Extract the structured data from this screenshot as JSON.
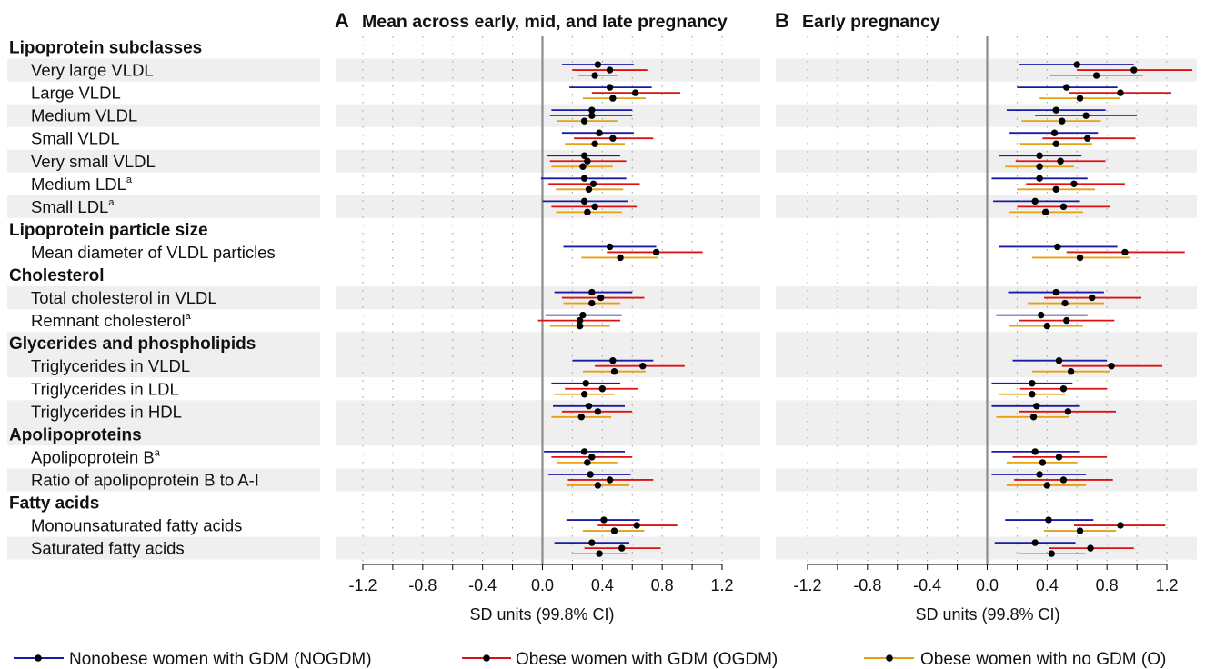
{
  "panels": [
    {
      "letter": "A",
      "title": "Mean across early, mid, and late pregnancy",
      "xlabel": "SD units (99.8% CI)"
    },
    {
      "letter": "B",
      "title": "Early pregnancy",
      "xlabel": "SD units (99.8% CI)"
    }
  ],
  "ticks": [
    "-1.2",
    "-0.8",
    "-0.4",
    "0.0",
    "0.4",
    "0.8",
    "1.2"
  ],
  "legend": [
    {
      "label": "Nonobese women with GDM (NOGDM)",
      "color": "#1a1aa8"
    },
    {
      "label": "Obese women with GDM (OGDM)",
      "color": "#dd1111"
    },
    {
      "label": "Obese women with no GDM (O)",
      "color": "#e8a010"
    }
  ],
  "rows": [
    {
      "label": "Lipoprotein subclasses",
      "group": true
    },
    {
      "label": "Very large VLDL"
    },
    {
      "label": "Large VLDL"
    },
    {
      "label": "Medium VLDL"
    },
    {
      "label": "Small VLDL"
    },
    {
      "label": "Very small VLDL"
    },
    {
      "label": "Medium LDL",
      "sup": "a"
    },
    {
      "label": "Small LDL",
      "sup": "a"
    },
    {
      "label": "Lipoprotein particle size",
      "group": true
    },
    {
      "label": "Mean diameter of VLDL particles"
    },
    {
      "label": "Cholesterol",
      "group": true
    },
    {
      "label": "Total cholesterol in VLDL"
    },
    {
      "label": "Remnant cholesterol",
      "sup": "a"
    },
    {
      "label": "Glycerides and phospholipids",
      "group": true
    },
    {
      "label": "Triglycerides in VLDL"
    },
    {
      "label": "Triglycerides in LDL"
    },
    {
      "label": "Triglycerides in HDL"
    },
    {
      "label": "Apolipoproteins",
      "group": true
    },
    {
      "label": "Apolipoprotein B",
      "sup": "a"
    },
    {
      "label": "Ratio of apolipoprotein B to A-I"
    },
    {
      "label": "Fatty acids",
      "group": true
    },
    {
      "label": "Monounsaturated fatty acids"
    },
    {
      "label": "Saturated fatty acids"
    }
  ],
  "chart_data": {
    "type": "forest",
    "xlim": [
      -1.2,
      1.2
    ],
    "series_names": [
      "Nonobese women with GDM (NOGDM)",
      "Obese women with GDM (OGDM)",
      "Obese women with no GDM (O)"
    ],
    "panels": [
      {
        "name": "Mean across early, mid, and late pregnancy",
        "values": {
          "Very large VLDL": [
            [
              0.37,
              0.13,
              0.61
            ],
            [
              0.45,
              0.2,
              0.7
            ],
            [
              0.35,
              0.24,
              0.5
            ]
          ],
          "Large VLDL": [
            [
              0.45,
              0.18,
              0.73
            ],
            [
              0.62,
              0.33,
              0.92
            ],
            [
              0.47,
              0.27,
              0.69
            ]
          ],
          "Medium VLDL": [
            [
              0.33,
              0.06,
              0.6
            ],
            [
              0.33,
              0.05,
              0.6
            ],
            [
              0.28,
              0.1,
              0.5
            ]
          ],
          "Small VLDL": [
            [
              0.38,
              0.13,
              0.61
            ],
            [
              0.47,
              0.21,
              0.74
            ],
            [
              0.35,
              0.15,
              0.55
            ]
          ],
          "Very small VLDL": [
            [
              0.28,
              0.03,
              0.52
            ],
            [
              0.3,
              0.05,
              0.56
            ],
            [
              0.27,
              0.06,
              0.47
            ]
          ],
          "Medium LDL": [
            [
              0.28,
              -0.01,
              0.56
            ],
            [
              0.34,
              0.04,
              0.65
            ],
            [
              0.31,
              0.09,
              0.54
            ]
          ],
          "Small LDL": [
            [
              0.28,
              0.0,
              0.57
            ],
            [
              0.35,
              0.06,
              0.63
            ],
            [
              0.3,
              0.09,
              0.53
            ]
          ],
          "Mean diameter of VLDL particles": [
            [
              0.45,
              0.14,
              0.76
            ],
            [
              0.76,
              0.43,
              1.07
            ],
            [
              0.52,
              0.26,
              0.77
            ]
          ],
          "Total cholesterol in VLDL": [
            [
              0.33,
              0.08,
              0.6
            ],
            [
              0.39,
              0.13,
              0.68
            ],
            [
              0.33,
              0.14,
              0.52
            ]
          ],
          "Remnant cholesterol": [
            [
              0.27,
              0.02,
              0.53
            ],
            [
              0.25,
              -0.03,
              0.52
            ],
            [
              0.25,
              0.05,
              0.45
            ]
          ],
          "Triglycerides in VLDL": [
            [
              0.47,
              0.2,
              0.74
            ],
            [
              0.67,
              0.35,
              0.95
            ],
            [
              0.48,
              0.27,
              0.69
            ]
          ],
          "Triglycerides in LDL": [
            [
              0.29,
              0.06,
              0.52
            ],
            [
              0.4,
              0.15,
              0.64
            ],
            [
              0.28,
              0.08,
              0.48
            ]
          ],
          "Triglycerides in HDL": [
            [
              0.31,
              0.07,
              0.55
            ],
            [
              0.37,
              0.13,
              0.6
            ],
            [
              0.26,
              0.06,
              0.46
            ]
          ],
          "Apolipoprotein B": [
            [
              0.28,
              0.01,
              0.55
            ],
            [
              0.33,
              0.06,
              0.6
            ],
            [
              0.3,
              0.1,
              0.5
            ]
          ],
          "Ratio of apolipoprotein B to A-I": [
            [
              0.32,
              0.04,
              0.59
            ],
            [
              0.45,
              0.17,
              0.74
            ],
            [
              0.37,
              0.16,
              0.58
            ]
          ],
          "Monounsaturated fatty acids": [
            [
              0.41,
              0.16,
              0.65
            ],
            [
              0.63,
              0.37,
              0.9
            ],
            [
              0.48,
              0.27,
              0.68
            ]
          ],
          "Saturated fatty acids": [
            [
              0.33,
              0.08,
              0.58
            ],
            [
              0.53,
              0.28,
              0.79
            ],
            [
              0.38,
              0.2,
              0.57
            ]
          ]
        }
      },
      {
        "name": "Early pregnancy",
        "values": {
          "Very large VLDL": [
            [
              0.6,
              0.21,
              0.98
            ],
            [
              0.98,
              0.6,
              1.37
            ],
            [
              0.73,
              0.42,
              1.04
            ]
          ],
          "Large VLDL": [
            [
              0.53,
              0.2,
              0.87
            ],
            [
              0.89,
              0.55,
              1.23
            ],
            [
              0.62,
              0.35,
              0.89
            ]
          ],
          "Medium VLDL": [
            [
              0.46,
              0.13,
              0.79
            ],
            [
              0.66,
              0.32,
              1.0
            ],
            [
              0.5,
              0.23,
              0.76
            ]
          ],
          "Small VLDL": [
            [
              0.45,
              0.15,
              0.74
            ],
            [
              0.67,
              0.37,
              0.99
            ],
            [
              0.46,
              0.22,
              0.7
            ]
          ],
          "Very small VLDL": [
            [
              0.35,
              0.08,
              0.63
            ],
            [
              0.49,
              0.19,
              0.79
            ],
            [
              0.35,
              0.12,
              0.58
            ]
          ],
          "Medium LDL": [
            [
              0.35,
              0.03,
              0.67
            ],
            [
              0.58,
              0.26,
              0.92
            ],
            [
              0.46,
              0.2,
              0.72
            ]
          ],
          "Small LDL": [
            [
              0.32,
              0.04,
              0.62
            ],
            [
              0.51,
              0.2,
              0.82
            ],
            [
              0.39,
              0.15,
              0.64
            ]
          ],
          "Mean diameter of VLDL particles": [
            [
              0.47,
              0.08,
              0.87
            ],
            [
              0.92,
              0.53,
              1.32
            ],
            [
              0.62,
              0.3,
              0.95
            ]
          ],
          "Total cholesterol in VLDL": [
            [
              0.46,
              0.14,
              0.78
            ],
            [
              0.7,
              0.38,
              1.03
            ],
            [
              0.52,
              0.27,
              0.78
            ]
          ],
          "Remnant cholesterol": [
            [
              0.36,
              0.06,
              0.67
            ],
            [
              0.53,
              0.21,
              0.85
            ],
            [
              0.4,
              0.15,
              0.64
            ]
          ],
          "Triglycerides in VLDL": [
            [
              0.48,
              0.17,
              0.8
            ],
            [
              0.83,
              0.5,
              1.17
            ],
            [
              0.56,
              0.3,
              0.82
            ]
          ],
          "Triglycerides in LDL": [
            [
              0.3,
              0.03,
              0.57
            ],
            [
              0.51,
              0.22,
              0.8
            ],
            [
              0.3,
              0.08,
              0.52
            ]
          ],
          "Triglycerides in HDL": [
            [
              0.33,
              0.03,
              0.62
            ],
            [
              0.54,
              0.21,
              0.86
            ],
            [
              0.31,
              0.06,
              0.55
            ]
          ],
          "Apolipoprotein B": [
            [
              0.32,
              0.03,
              0.62
            ],
            [
              0.48,
              0.17,
              0.8
            ],
            [
              0.37,
              0.13,
              0.6
            ]
          ],
          "Ratio of apolipoprotein B to A-I": [
            [
              0.35,
              0.03,
              0.66
            ],
            [
              0.51,
              0.18,
              0.84
            ],
            [
              0.4,
              0.13,
              0.66
            ]
          ],
          "Monounsaturated fatty acids": [
            [
              0.41,
              0.12,
              0.71
            ],
            [
              0.89,
              0.58,
              1.19
            ],
            [
              0.62,
              0.38,
              0.86
            ]
          ],
          "Saturated fatty acids": [
            [
              0.32,
              0.05,
              0.59
            ],
            [
              0.69,
              0.41,
              0.98
            ],
            [
              0.43,
              0.21,
              0.66
            ]
          ]
        }
      }
    ]
  }
}
